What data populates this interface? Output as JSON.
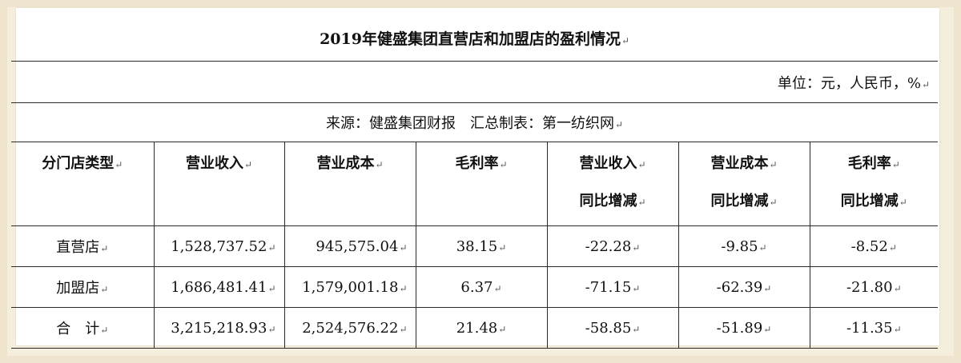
{
  "table": {
    "title": "2019年健盛集团直营店和加盟店的盈利情况",
    "unit": "单位：元，人民币，%",
    "source": "来源：健盛集团财报　汇总制表：第一纺织网",
    "headers": [
      [
        "分门店类型"
      ],
      [
        "营业收入"
      ],
      [
        "营业成本"
      ],
      [
        "毛利率"
      ],
      [
        "营业收入",
        "同比增减"
      ],
      [
        "营业成本",
        "同比增减"
      ],
      [
        "毛利率",
        "同比增减"
      ]
    ],
    "rows": [
      {
        "type": "直营店",
        "revenue": "1,528,737.52",
        "cost": "945,575.04",
        "margin": "38.15",
        "revenue_yoy": "-22.28",
        "cost_yoy": "-9.85",
        "margin_yoy": "-8.52"
      },
      {
        "type": "加盟店",
        "revenue": "1,686,481.41",
        "cost": "1,579,001.18",
        "margin": "6.37",
        "revenue_yoy": "-71.15",
        "cost_yoy": "-62.39",
        "margin_yoy": "-21.80"
      },
      {
        "type": "合　计",
        "revenue": "3,215,218.93",
        "cost": "2,524,576.22",
        "margin": "21.48",
        "revenue_yoy": "-58.85",
        "cost_yoy": "-51.89",
        "margin_yoy": "-11.35"
      }
    ]
  }
}
